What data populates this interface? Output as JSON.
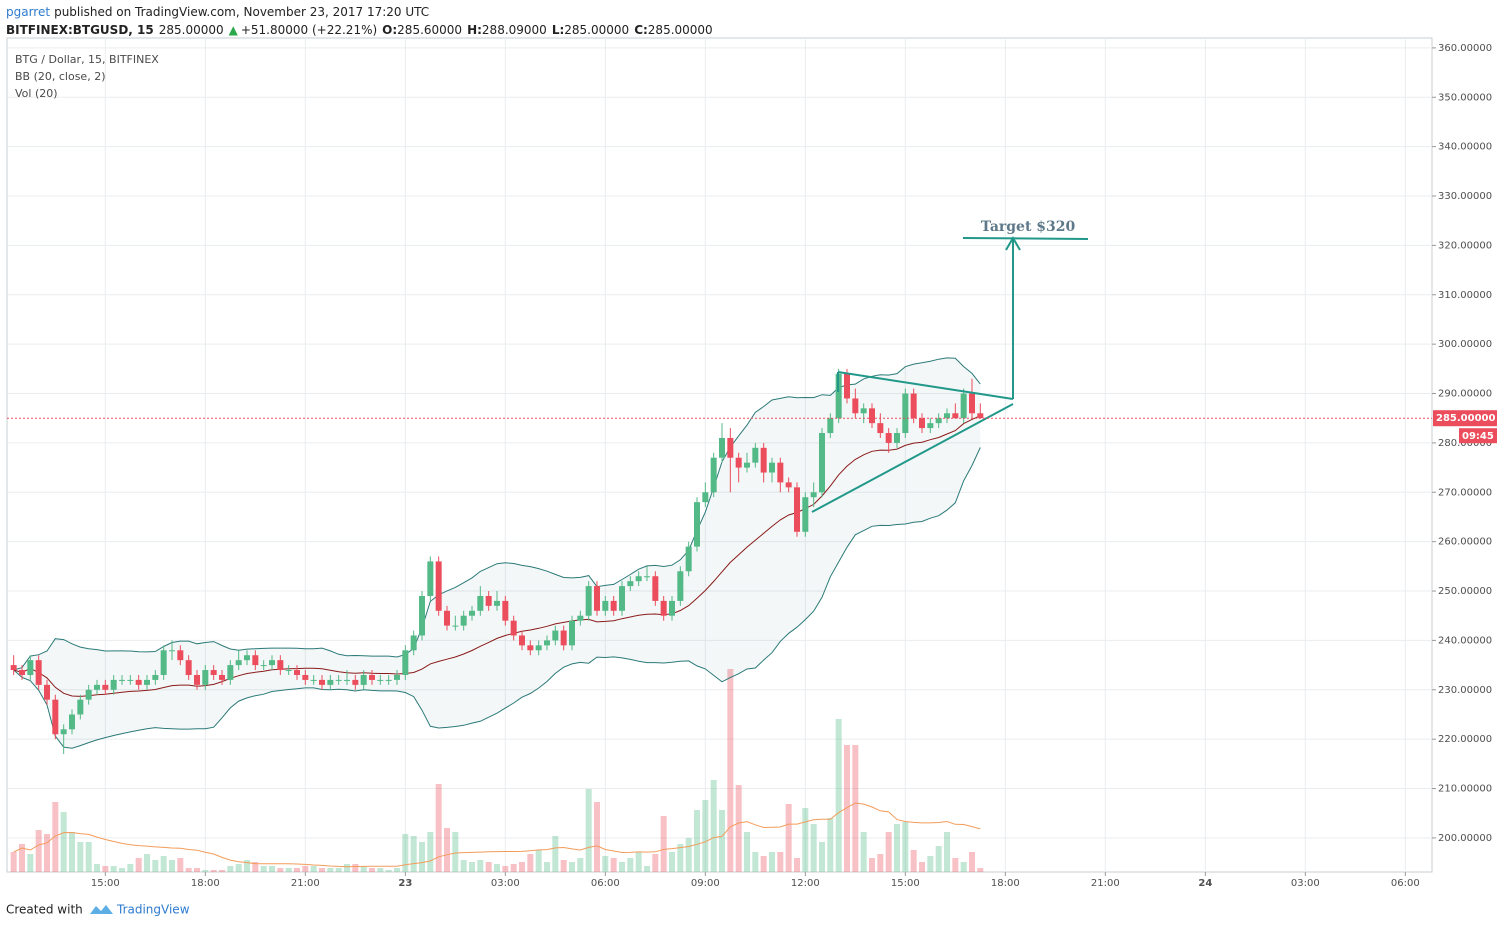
{
  "header": {
    "author": "pgarret",
    "published": "published on TradingView.com, November 23, 2017 17:20 UTC"
  },
  "chart_data": {
    "type": "candlestick",
    "symbol": "BITFINEX:BTGUSD, 15",
    "last": "285.00000",
    "arrow": "▲",
    "change": "+51.80000 (+22.21%)",
    "ohlc_labels": [
      "O:",
      "H:",
      "L:",
      "C:"
    ],
    "ohlc_values": [
      "285.60000",
      "288.09000",
      "285.00000",
      "285.00000"
    ],
    "legend": [
      "BTG / Dollar, 15, BITFINEX",
      "BB (20, close, 2)",
      "Vol (20)"
    ],
    "annotation": "Target $320",
    "price_label": "285.00000",
    "price_value": 285,
    "countdown": "09:45",
    "up_color": "#53b987",
    "down_color": "#eb4d5c",
    "band_color": "#2b7a78",
    "basis_color": "#8b1a1a",
    "vol_ma_color": "#f39c5a",
    "ylim": [
      193.1,
      362.0
    ],
    "yticks": [
      {
        "value": 200,
        "label": "200.00000"
      },
      {
        "value": 210,
        "label": "210.00000"
      },
      {
        "value": 220,
        "label": "220.00000"
      },
      {
        "value": 230,
        "label": "230.00000"
      },
      {
        "value": 240,
        "label": "240.00000"
      },
      {
        "value": 250,
        "label": "250.00000"
      },
      {
        "value": 260,
        "label": "260.00000"
      },
      {
        "value": 270,
        "label": "270.00000"
      },
      {
        "value": 280,
        "label": "280.00000"
      },
      {
        "value": 290,
        "label": "290.00000"
      },
      {
        "value": 300,
        "label": "300.00000"
      },
      {
        "value": 310,
        "label": "310.00000"
      },
      {
        "value": 320,
        "label": "320.00000"
      },
      {
        "value": 330,
        "label": "330.00000"
      },
      {
        "value": 340,
        "label": "340.00000"
      },
      {
        "value": 350,
        "label": "350.00000"
      },
      {
        "value": 360,
        "label": "360.00000"
      }
    ],
    "xlim": [
      -0.8,
      170.2
    ],
    "xticks": [
      {
        "value": 11,
        "label": "15:00"
      },
      {
        "value": 23,
        "label": "18:00"
      },
      {
        "value": 35,
        "label": "21:00"
      },
      {
        "value": 47,
        "label": "23"
      },
      {
        "value": 59,
        "label": "03:00"
      },
      {
        "value": 71,
        "label": "06:00"
      },
      {
        "value": 83,
        "label": "09:00"
      },
      {
        "value": 95,
        "label": "12:00"
      },
      {
        "value": 107,
        "label": "15:00"
      },
      {
        "value": 119,
        "label": "18:00"
      },
      {
        "value": 131,
        "label": "21:00"
      },
      {
        "value": 143,
        "label": "24"
      },
      {
        "value": 155,
        "label": "03:00"
      },
      {
        "value": 167,
        "label": "06:00"
      }
    ],
    "candles": [
      [
        235,
        237,
        233,
        234
      ],
      [
        234,
        235,
        232,
        233
      ],
      [
        233,
        237,
        232,
        236
      ],
      [
        236,
        237,
        230,
        231
      ],
      [
        231,
        232,
        227,
        228
      ],
      [
        228,
        229,
        220,
        221
      ],
      [
        221,
        223,
        217,
        222
      ],
      [
        222,
        226,
        221,
        225
      ],
      [
        225,
        229,
        224,
        228
      ],
      [
        228,
        231,
        227,
        230
      ],
      [
        230,
        232,
        229,
        231
      ],
      [
        231,
        232,
        229,
        230
      ],
      [
        230,
        233,
        229,
        232
      ],
      [
        232,
        233,
        231,
        232
      ],
      [
        232,
        233,
        231,
        232
      ],
      [
        232,
        233,
        230,
        231
      ],
      [
        231,
        233,
        230,
        232
      ],
      [
        232,
        234,
        231,
        233
      ],
      [
        233,
        239,
        232,
        238
      ],
      [
        238,
        240,
        236,
        238
      ],
      [
        238,
        239,
        235,
        236
      ],
      [
        236,
        237,
        232,
        233
      ],
      [
        233,
        234,
        230,
        231
      ],
      [
        231,
        235,
        230,
        234
      ],
      [
        234,
        235,
        232,
        233
      ],
      [
        233,
        234,
        231,
        232
      ],
      [
        232,
        236,
        231,
        235
      ],
      [
        235,
        238,
        234,
        236
      ],
      [
        236,
        238,
        235,
        237
      ],
      [
        237,
        238,
        234,
        235
      ],
      [
        235,
        236,
        234,
        235
      ],
      [
        235,
        237,
        234,
        236
      ],
      [
        236,
        237,
        233,
        234
      ],
      [
        234,
        235,
        233,
        234
      ],
      [
        234,
        235,
        232,
        233
      ],
      [
        233,
        234,
        231,
        232
      ],
      [
        232,
        233,
        231,
        232
      ],
      [
        232,
        233,
        230,
        231
      ],
      [
        231,
        233,
        230,
        232
      ],
      [
        232,
        233,
        231,
        232
      ],
      [
        232,
        234,
        231,
        232
      ],
      [
        232,
        233,
        230,
        231
      ],
      [
        231,
        234,
        230,
        233
      ],
      [
        233,
        234,
        231,
        232
      ],
      [
        232,
        233,
        231,
        232
      ],
      [
        232,
        233,
        231,
        232
      ],
      [
        232,
        234,
        231,
        233
      ],
      [
        233,
        239,
        232,
        238
      ],
      [
        238,
        242,
        237,
        241
      ],
      [
        241,
        250,
        240,
        249
      ],
      [
        249,
        257,
        248,
        256
      ],
      [
        256,
        257,
        245,
        246
      ],
      [
        246,
        247,
        242,
        243
      ],
      [
        243,
        245,
        242,
        243
      ],
      [
        243,
        246,
        242,
        245
      ],
      [
        245,
        247,
        244,
        246
      ],
      [
        246,
        251,
        245,
        249
      ],
      [
        249,
        250,
        246,
        247
      ],
      [
        247,
        250,
        246,
        248
      ],
      [
        248,
        249,
        243,
        244
      ],
      [
        244,
        245,
        240,
        241
      ],
      [
        241,
        242,
        238,
        239
      ],
      [
        239,
        240,
        237,
        238
      ],
      [
        238,
        240,
        237,
        239
      ],
      [
        239,
        241,
        238,
        240
      ],
      [
        240,
        243,
        239,
        242
      ],
      [
        242,
        243,
        238,
        239
      ],
      [
        239,
        245,
        238,
        244
      ],
      [
        244,
        246,
        243,
        245
      ],
      [
        245,
        252,
        244,
        251
      ],
      [
        251,
        252,
        245,
        246
      ],
      [
        246,
        249,
        245,
        248
      ],
      [
        248,
        249,
        245,
        246
      ],
      [
        246,
        252,
        245,
        251
      ],
      [
        251,
        253,
        250,
        252
      ],
      [
        252,
        254,
        251,
        253
      ],
      [
        253,
        255,
        252,
        253
      ],
      [
        253,
        254,
        247,
        248
      ],
      [
        248,
        249,
        244,
        245
      ],
      [
        245,
        249,
        244,
        248
      ],
      [
        248,
        255,
        247,
        254
      ],
      [
        254,
        260,
        253,
        259
      ],
      [
        259,
        269,
        258,
        268
      ],
      [
        268,
        272,
        267,
        270
      ],
      [
        270,
        278,
        269,
        277
      ],
      [
        277,
        284,
        276,
        281
      ],
      [
        281,
        283,
        270,
        277
      ],
      [
        277,
        278,
        272,
        275
      ],
      [
        275,
        278,
        274,
        276
      ],
      [
        276,
        280,
        275,
        279
      ],
      [
        279,
        280,
        272,
        274
      ],
      [
        274,
        277,
        272,
        276
      ],
      [
        276,
        277,
        270,
        272
      ],
      [
        272,
        273,
        270,
        271
      ],
      [
        271,
        272,
        261,
        262
      ],
      [
        262,
        270,
        261,
        269
      ],
      [
        269,
        272,
        267,
        270
      ],
      [
        270,
        283,
        269,
        282
      ],
      [
        282,
        286,
        281,
        285
      ],
      [
        285,
        295,
        284,
        294
      ],
      [
        294,
        295,
        288,
        289
      ],
      [
        289,
        291,
        285,
        286
      ],
      [
        286,
        288,
        284,
        287
      ],
      [
        287,
        288,
        283,
        284
      ],
      [
        284,
        286,
        281,
        282
      ],
      [
        282,
        283,
        278,
        280
      ],
      [
        280,
        283,
        279,
        282
      ],
      [
        282,
        291,
        281,
        290
      ],
      [
        290,
        291,
        284,
        285
      ],
      [
        285,
        286,
        282,
        283
      ],
      [
        283,
        285,
        282,
        284
      ],
      [
        284,
        286,
        283,
        285
      ],
      [
        285,
        287,
        284,
        286
      ],
      [
        286,
        288,
        285,
        285
      ],
      [
        285,
        291,
        284,
        290
      ],
      [
        290,
        293,
        285,
        286
      ],
      [
        286,
        288,
        285,
        285
      ]
    ],
    "volume": [
      20,
      28,
      18,
      42,
      38,
      70,
      60,
      40,
      30,
      30,
      8,
      6,
      6,
      4,
      8,
      14,
      18,
      12,
      16,
      12,
      14,
      4,
      4,
      2,
      2,
      2,
      6,
      8,
      12,
      10,
      6,
      6,
      4,
      4,
      4,
      6,
      6,
      4,
      4,
      4,
      8,
      8,
      6,
      4,
      4,
      2,
      4,
      38,
      36,
      30,
      40,
      88,
      44,
      40,
      12,
      10,
      12,
      10,
      8,
      6,
      8,
      10,
      18,
      22,
      10,
      36,
      12,
      10,
      14,
      83,
      70,
      16,
      14,
      10,
      14,
      20,
      6,
      18,
      56,
      20,
      28,
      34,
      62,
      72,
      92,
      62,
      203,
      87,
      40,
      20,
      16,
      20,
      20,
      68,
      14,
      64,
      48,
      30,
      54,
      153,
      127,
      127,
      40,
      14,
      18,
      40,
      48,
      50,
      22,
      10,
      16,
      26,
      40,
      14,
      10,
      20,
      4
    ],
    "grid": true
  },
  "footer": {
    "created": "Created with",
    "brand": "TradingView"
  }
}
